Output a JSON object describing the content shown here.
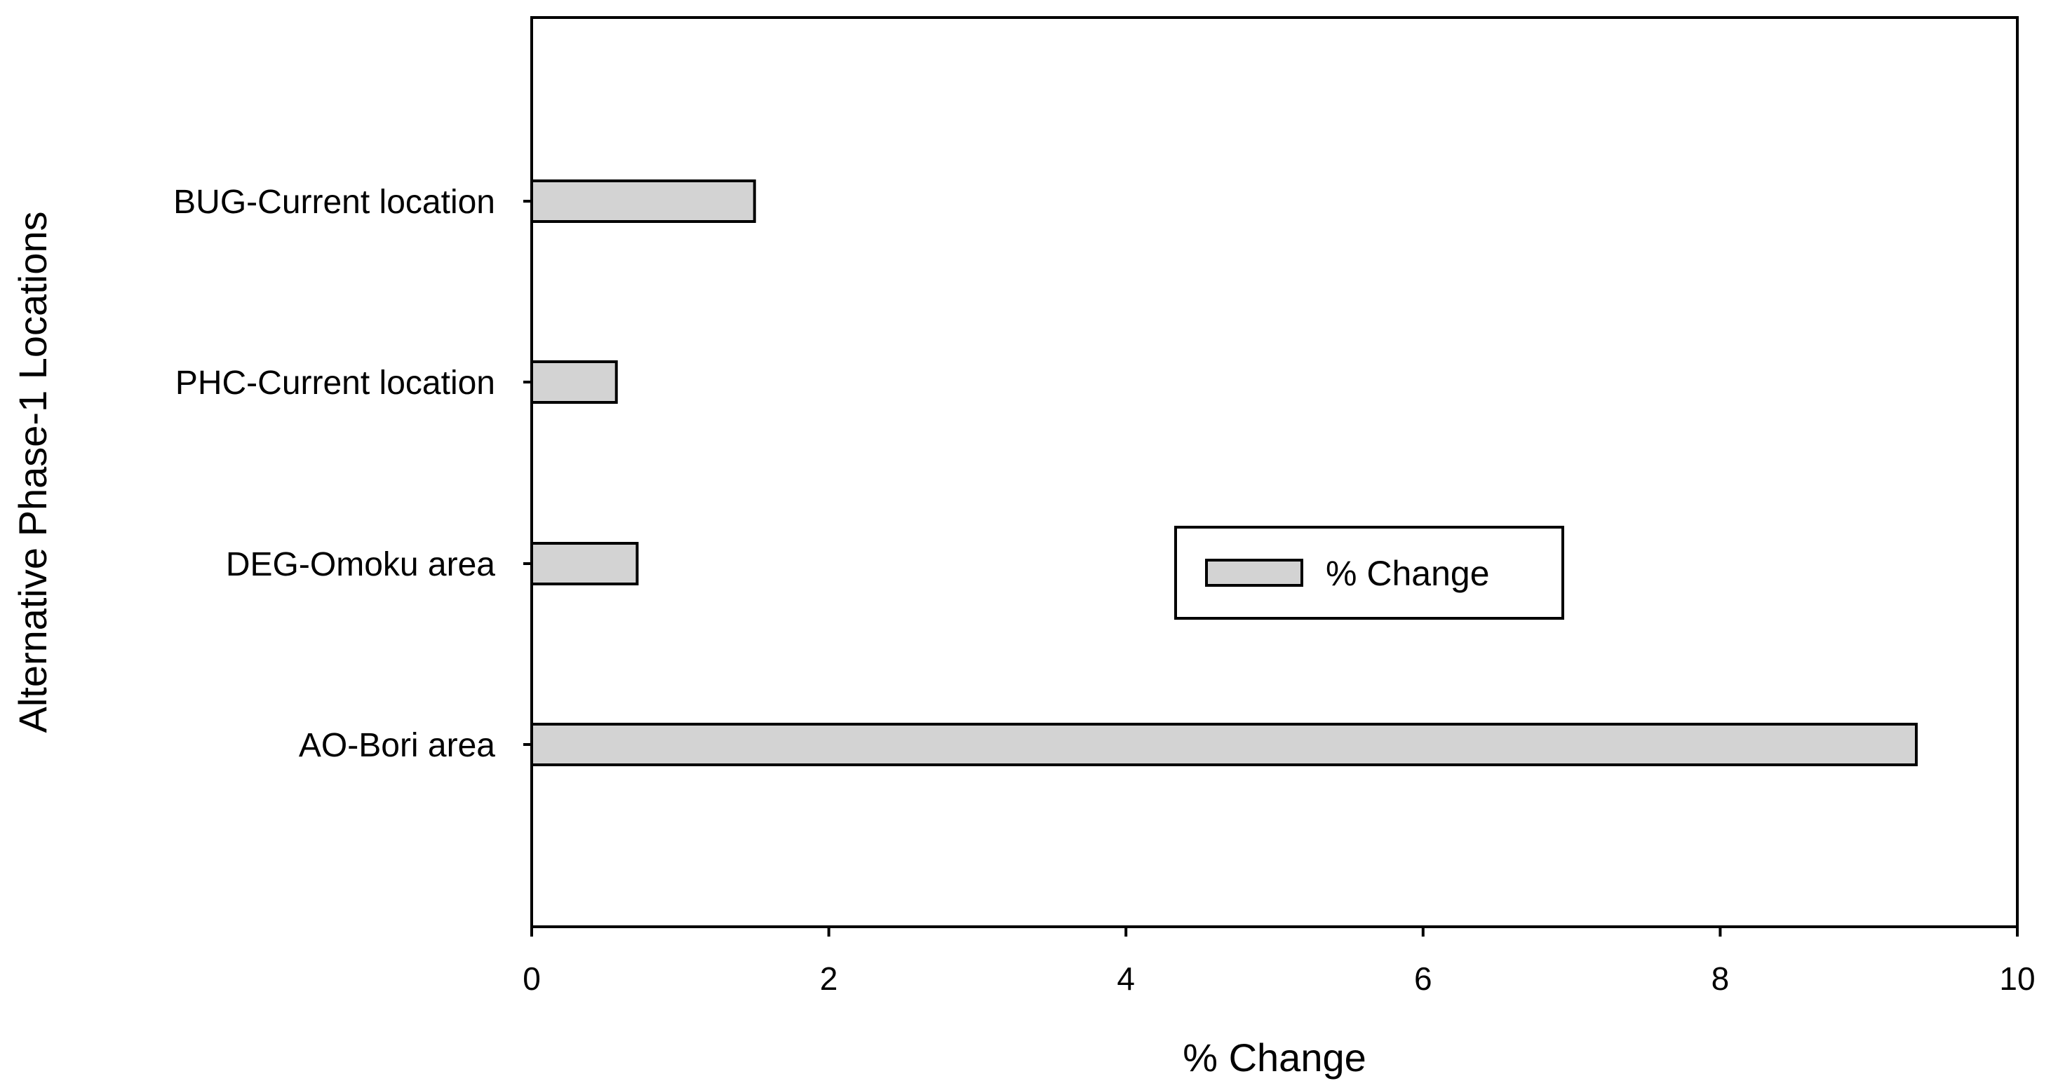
{
  "chart_data": {
    "type": "bar",
    "orientation": "horizontal",
    "title": "",
    "xlabel": "% Change",
    "ylabel": "Alternative Phase-1 Locations",
    "xlim": [
      0,
      10
    ],
    "xticks": [
      "0",
      "2",
      "4",
      "6",
      "8",
      "10"
    ],
    "grid": false,
    "legend_position": "center-right",
    "categories": [
      "BUG-Current location",
      "PHC-Current location",
      "DEG-Omoku area",
      "AO-Bori area"
    ],
    "series": [
      {
        "name": "% Change",
        "values": [
          1.5,
          0.57,
          0.71,
          9.32
        ],
        "color": "#d3d3d3"
      }
    ]
  }
}
